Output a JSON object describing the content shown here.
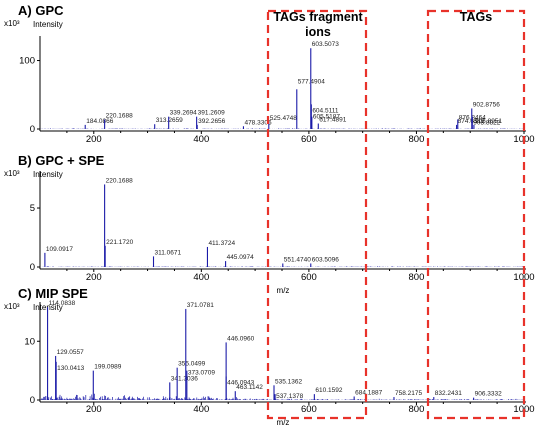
{
  "chart_data": [
    {
      "type": "line",
      "title": "A) GPC",
      "y_unit": "x10³",
      "ylabel": "Intensity",
      "xlabel": "",
      "xlim": [
        100,
        1000
      ],
      "ylim": [
        0,
        130
      ],
      "x_ticks": [
        "200",
        "400",
        "600",
        "800",
        "1000"
      ],
      "y_ticks": [
        "0",
        "100"
      ],
      "peaks": [
        {
          "x": 184.0866,
          "y": 6,
          "label": "184.0866"
        },
        {
          "x": 220.1688,
          "y": 14,
          "label": "220.1688"
        },
        {
          "x": 313.2659,
          "y": 7,
          "label": "313.2659"
        },
        {
          "x": 339.2694,
          "y": 18,
          "label": "339.2694"
        },
        {
          "x": 391.2609,
          "y": 18,
          "label": "391.2609"
        },
        {
          "x": 392.2656,
          "y": 6,
          "label": "392.2656"
        },
        {
          "x": 478.3306,
          "y": 4,
          "label": "478.3306"
        },
        {
          "x": 525.4748,
          "y": 10,
          "label": "525.4748"
        },
        {
          "x": 577.4904,
          "y": 58,
          "label": "577.4904"
        },
        {
          "x": 603.5073,
          "y": 118,
          "label": "603.5073"
        },
        {
          "x": 604.5111,
          "y": 36,
          "label": "604.5111"
        },
        {
          "x": 605.5187,
          "y": 18,
          "label": "605.5187"
        },
        {
          "x": 617.4891,
          "y": 8,
          "label": "617.4891"
        },
        {
          "x": 874.6312,
          "y": 6,
          "label": "874.6312"
        },
        {
          "x": 876.8464,
          "y": 14,
          "label": "876.8464"
        },
        {
          "x": 902.8756,
          "y": 30,
          "label": "902.8756"
        },
        {
          "x": 903.8822,
          "y": 18,
          "label": "903.8822"
        },
        {
          "x": 906.8951,
          "y": 6,
          "label": "906.8951"
        }
      ]
    },
    {
      "type": "line",
      "title": "B) GPC + SPE",
      "y_unit": "x10³",
      "ylabel": "Intensity",
      "xlabel": "m/z",
      "xlim": [
        100,
        1000
      ],
      "ylim": [
        0,
        7.8
      ],
      "x_ticks": [
        "200",
        "400",
        "600",
        "800",
        "1000"
      ],
      "y_ticks": [
        "0",
        "5"
      ],
      "peaks": [
        {
          "x": 109.0917,
          "y": 1.2,
          "label": "109.0917"
        },
        {
          "x": 220.1688,
          "y": 7.0,
          "label": "220.1688"
        },
        {
          "x": 221.172,
          "y": 1.8,
          "label": "221.1720"
        },
        {
          "x": 311.0671,
          "y": 0.9,
          "label": "311.0671"
        },
        {
          "x": 411.3724,
          "y": 1.7,
          "label": "411.3724"
        },
        {
          "x": 445.0974,
          "y": 0.5,
          "label": "445.0974"
        },
        {
          "x": 551.474,
          "y": 0.3,
          "label": "551.4740"
        },
        {
          "x": 603.5096,
          "y": 0.3,
          "label": "603.5096"
        }
      ]
    },
    {
      "type": "line",
      "title": "C) MIP SPE",
      "y_unit": "x10³",
      "ylabel": "Intensity",
      "xlabel": "m/z",
      "xlim": [
        100,
        1000
      ],
      "ylim": [
        0,
        16
      ],
      "x_ticks": [
        "200",
        "400",
        "600",
        "800",
        "1000"
      ],
      "y_ticks": [
        "0",
        "10"
      ],
      "peaks": [
        {
          "x": 114.0838,
          "y": 15.8,
          "label": "114.0838"
        },
        {
          "x": 129.0557,
          "y": 7.5,
          "label": "129.0557"
        },
        {
          "x": 130.0413,
          "y": 6.5,
          "label": "130.0413"
        },
        {
          "x": 199.0989,
          "y": 5.0,
          "label": "199.0989"
        },
        {
          "x": 341.3036,
          "y": 3.0,
          "label": "341.3036"
        },
        {
          "x": 355.0499,
          "y": 5.5,
          "label": "355.0499"
        },
        {
          "x": 371.0781,
          "y": 15.5,
          "label": "371.0781"
        },
        {
          "x": 373.0709,
          "y": 5.0,
          "label": "373.0709"
        },
        {
          "x": 446.096,
          "y": 9.8,
          "label": "446.0960"
        },
        {
          "x": 446.0943,
          "y": 4.0,
          "label": "446.0943"
        },
        {
          "x": 463.1142,
          "y": 1.5,
          "label": "463.1142"
        },
        {
          "x": 535.1362,
          "y": 2.5,
          "label": "535.1362"
        },
        {
          "x": 537.1378,
          "y": 1.0,
          "label": "537.1378"
        },
        {
          "x": 610.1592,
          "y": 1.0,
          "label": "610.1592"
        },
        {
          "x": 684.1887,
          "y": 0.6,
          "label": "684.1887"
        },
        {
          "x": 758.2175,
          "y": 0.5,
          "label": "758.2175"
        },
        {
          "x": 832.2431,
          "y": 0.5,
          "label": "832.2431"
        },
        {
          "x": 906.3332,
          "y": 0.4,
          "label": "906.3332"
        }
      ]
    }
  ],
  "annotations": {
    "fragments_line1": "TAGs fragment",
    "fragments_line2": "ions",
    "tags_label": "TAGs",
    "box_color": "#e8322a"
  },
  "colors": {
    "trace": "#1a1aa8"
  }
}
